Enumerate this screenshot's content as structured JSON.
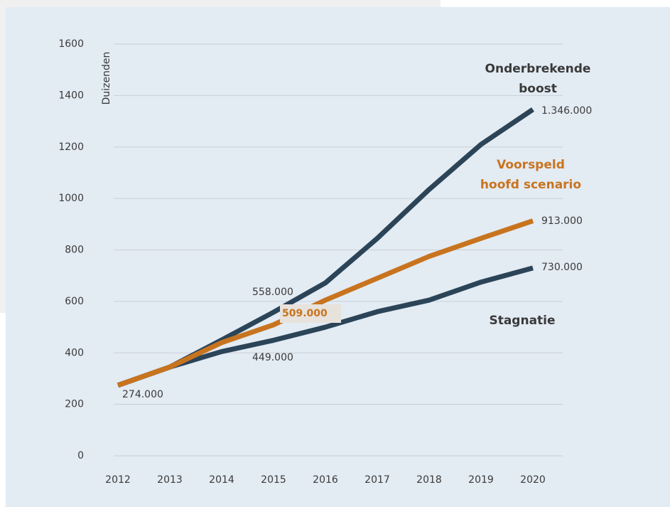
{
  "chart_data": {
    "type": "line",
    "y_label": "Duizenden",
    "categories": [
      "2012",
      "2013",
      "2014",
      "2015",
      "2016",
      "2017",
      "2018",
      "2019",
      "2020"
    ],
    "series": [
      {
        "name": "Onderbrekende boost",
        "color": "#2b4457",
        "values": [
          274,
          345,
          450,
          558,
          672,
          845,
          1035,
          1210,
          1346
        ],
        "value_labels": [
          "274.000",
          null,
          null,
          "558.000",
          null,
          null,
          null,
          null,
          "1.346.000"
        ]
      },
      {
        "name": "Voorspeld hoofd scenario",
        "color": "#c8741f",
        "values": [
          274,
          345,
          440,
          509,
          605,
          690,
          775,
          845,
          913
        ],
        "value_labels": [
          null,
          null,
          null,
          "509.000",
          null,
          null,
          null,
          null,
          "913.000"
        ]
      },
      {
        "name": "Stagnatie",
        "color": "#2b4457",
        "values": [
          274,
          345,
          405,
          449,
          500,
          560,
          605,
          675,
          730
        ],
        "value_labels": [
          null,
          null,
          null,
          "449.000",
          null,
          null,
          null,
          null,
          "730.000"
        ]
      }
    ],
    "ylim": [
      0,
      1600
    ],
    "yticks": [
      0,
      200,
      400,
      600,
      800,
      1000,
      1200,
      1400,
      1600
    ],
    "grid": true
  }
}
